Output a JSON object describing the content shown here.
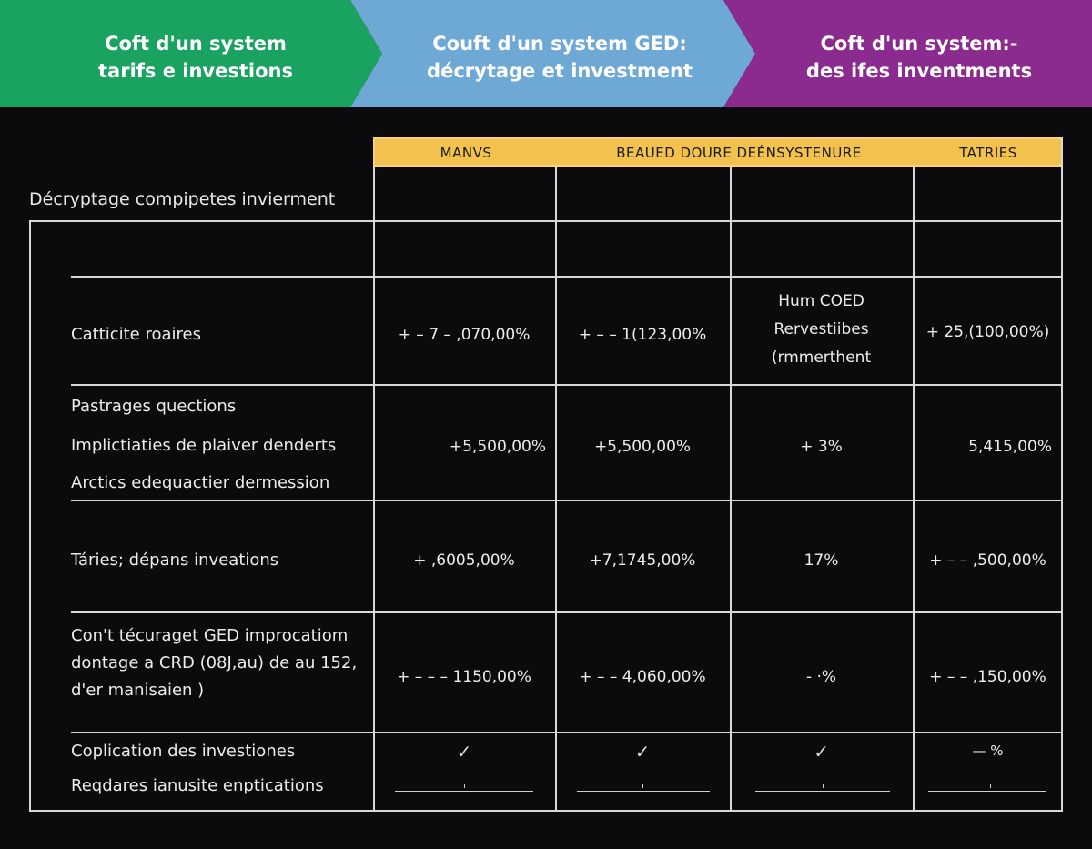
{
  "banner": {
    "panels": [
      {
        "line1": "Coft d'un system",
        "line2": "tarifs e investions",
        "color": "#1aa260"
      },
      {
        "line1": "Couft d'un system GED:",
        "line2": "décrytage et investment",
        "color": "#6ea8d4"
      },
      {
        "line1": "Coft d'un system:-",
        "line2": "des ifes inventments",
        "color": "#8b2a8f"
      }
    ]
  },
  "caption": "Décryptage compipetes invierment",
  "table": {
    "columns": [
      "MANVS",
      "BEAUED DOURE DEÉNSYSTENURE",
      "TATRIES"
    ],
    "rows": [
      {
        "labels": [
          "Catticite roaires"
        ],
        "cells": [
          "+ – 7 – ,070,00%",
          "+ – – 1(123,00%",
          [
            "Hum COED",
            "Rervestiibes",
            "(rmmerthent"
          ],
          "+ 25,(100,00%)"
        ]
      },
      {
        "labels": [
          "Pastrages quections",
          "Implictiaties de plaiver denderts",
          "Arctics edequactier dermession"
        ],
        "cells": [
          "+5,500,00%",
          "+5,500,00%",
          "+ 3%",
          "5,415,00%"
        ]
      },
      {
        "labels": [
          "Táries; dépans inveations"
        ],
        "cells": [
          "+ ,6005,00%",
          "+7,1745,00%",
          "17%",
          "+ – – ,500,00%"
        ]
      },
      {
        "labels": [
          "Con't técuraget GED improcatiom",
          "dontage a CRD (08J,au) de au 152,",
          "d'er manisaien )"
        ],
        "cells": [
          "+ – – – 1150,00%",
          "+ – – 4,060,00%",
          "- ·%",
          "+ – – ,150,00%"
        ]
      },
      {
        "labels": [
          "Coplication des investiones",
          "Reqdares ianusite enptications"
        ],
        "cells": [
          "✓",
          "✓",
          "✓",
          "—      %"
        ]
      }
    ]
  }
}
